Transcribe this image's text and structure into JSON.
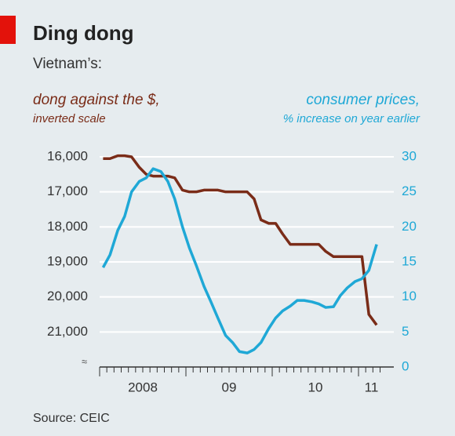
{
  "chart_data": {
    "type": "line",
    "title": "Ding dong",
    "subtitle": "Vietnam’s:",
    "y_label": [
      "dong against the $,",
      "inverted scale"
    ],
    "y2_label": [
      "consumer prices,",
      "% increase on year earlier"
    ],
    "source": "Source: CEIC",
    "x": [
      2008.04,
      2008.12,
      2008.21,
      2008.29,
      2008.37,
      2008.46,
      2008.54,
      2008.62,
      2008.71,
      2008.79,
      2008.87,
      2008.96,
      2009.04,
      2009.12,
      2009.21,
      2009.29,
      2009.37,
      2009.46,
      2009.54,
      2009.62,
      2009.71,
      2009.79,
      2009.87,
      2009.96,
      2010.04,
      2010.12,
      2010.21,
      2010.29,
      2010.37,
      2010.46,
      2010.54,
      2010.62,
      2010.71,
      2010.79,
      2010.87,
      2010.96,
      2011.04,
      2011.12,
      2011.21
    ],
    "xlim": [
      2008,
      2011.3
    ],
    "xticks": [
      {
        "value": 2008.5,
        "label": "2008"
      },
      {
        "value": 2009.5,
        "label": "09"
      },
      {
        "value": 2010.5,
        "label": "10"
      },
      {
        "value": 2011.15,
        "label": "11"
      }
    ],
    "ylim": [
      22000,
      16000
    ],
    "yticks": [
      {
        "value": 16000,
        "label": "16,000"
      },
      {
        "value": 17000,
        "label": "17,000"
      },
      {
        "value": 18000,
        "label": "18,000"
      },
      {
        "value": 19000,
        "label": "19,000"
      },
      {
        "value": 20000,
        "label": "20,000"
      },
      {
        "value": 21000,
        "label": "21,000"
      }
    ],
    "y2lim": [
      0,
      30
    ],
    "y2ticks": [
      0,
      5,
      10,
      15,
      20,
      25,
      30
    ],
    "grid": true,
    "series": [
      {
        "name": "dong against the $",
        "color": "#7a2c18",
        "values": [
          16050,
          16050,
          15970,
          15970,
          16000,
          16300,
          16500,
          16550,
          16550,
          16550,
          16600,
          16950,
          17000,
          17000,
          16950,
          16950,
          16950,
          17000,
          17000,
          17000,
          17000,
          17200,
          17800,
          17900,
          17900,
          18200,
          18500,
          18500,
          18500,
          18500,
          18500,
          18700,
          18850,
          18850,
          18850,
          18850,
          18850,
          20500,
          20800
        ]
      },
      {
        "name": "consumer prices",
        "color": "#1fa8d6",
        "axis": "y2",
        "values": [
          14.2,
          16,
          19.5,
          21.5,
          25,
          26.5,
          27,
          28.3,
          27.9,
          26.5,
          24,
          20,
          17,
          14.5,
          11.5,
          9.3,
          7,
          4.5,
          3.5,
          2.2,
          2,
          2.5,
          3.5,
          5.5,
          7,
          8,
          8.7,
          9.5,
          9.5,
          9.3,
          9,
          8.5,
          8.6,
          10.2,
          11.3,
          12.2,
          12.6,
          13.8,
          17.5
        ]
      }
    ]
  }
}
